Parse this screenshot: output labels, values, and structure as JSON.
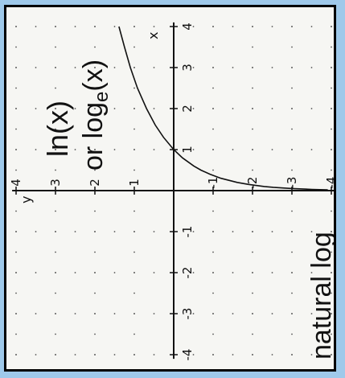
{
  "colors": {
    "page_bg": "#9fc9ea",
    "frame": "#000000",
    "paper": "#f6f6f3",
    "ink": "#111111",
    "dot": "#555555"
  },
  "text": {
    "title_line1": "ln(x)",
    "title_line2_prefix": "or log",
    "title_line2_sub": "e",
    "title_line2_suffix": "(x)",
    "footer": "natural log"
  },
  "chart_data": {
    "type": "line",
    "function": "y = ln(x)",
    "xlabel": "x",
    "ylabel": "y",
    "xlim": [
      -4,
      4
    ],
    "ylim": [
      -4,
      4
    ],
    "x_ticks": [
      -4,
      -3,
      -2,
      -1,
      1,
      2,
      3,
      4
    ],
    "y_ticks": [
      -4,
      -3,
      -2,
      -1,
      1,
      2,
      3,
      4
    ],
    "grid": "dotted",
    "orientation": "rotated 90° counter-clockwise",
    "series": [
      {
        "x": [
          0.02,
          0.03,
          0.05,
          0.08,
          0.1,
          0.15,
          0.2,
          0.3,
          0.4,
          0.5,
          0.6,
          0.8,
          1.0,
          1.3,
          1.6,
          2.0,
          2.5,
          3.0,
          3.5,
          4.0
        ],
        "y": [
          -3.91,
          -3.51,
          -3.0,
          -2.53,
          -2.3,
          -1.9,
          -1.61,
          -1.2,
          -0.92,
          -0.69,
          -0.51,
          -0.22,
          0.0,
          0.26,
          0.47,
          0.69,
          0.92,
          1.1,
          1.25,
          1.39
        ]
      }
    ]
  }
}
